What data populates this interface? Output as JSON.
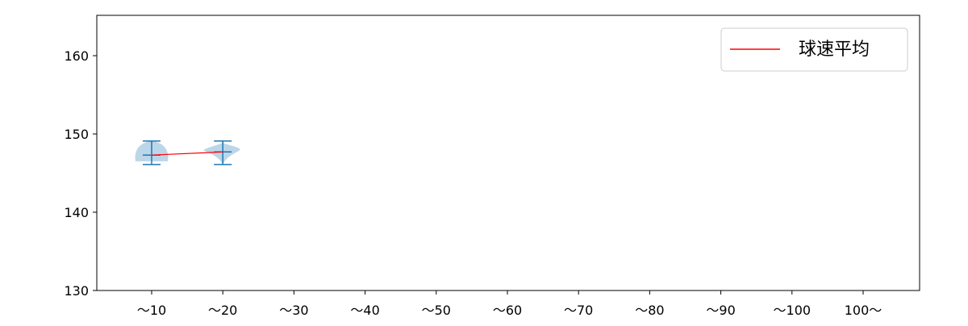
{
  "chart_data": {
    "type": "violin",
    "categories": [
      "～10",
      "～20",
      "～30",
      "～40",
      "～50",
      "～60",
      "～70",
      "～80",
      "～90",
      "～100",
      "100～"
    ],
    "series": [
      {
        "name": "球速平均",
        "color": "#ff0000",
        "values": [
          147.3,
          147.7,
          null,
          null,
          null,
          null,
          null,
          null,
          null,
          null,
          null
        ]
      }
    ],
    "violins": [
      {
        "category": "～10",
        "min": 146.1,
        "max": 149.1,
        "mean": 147.3
      },
      {
        "category": "～20",
        "min": 146.1,
        "max": 149.1,
        "mean": 147.7
      }
    ],
    "violin_color": "#1f77b4",
    "ylim": [
      130,
      165
    ],
    "yticks": [
      130,
      140,
      150,
      160
    ],
    "legend": {
      "position": "top-right",
      "label": "球速平均"
    },
    "grid": false
  }
}
